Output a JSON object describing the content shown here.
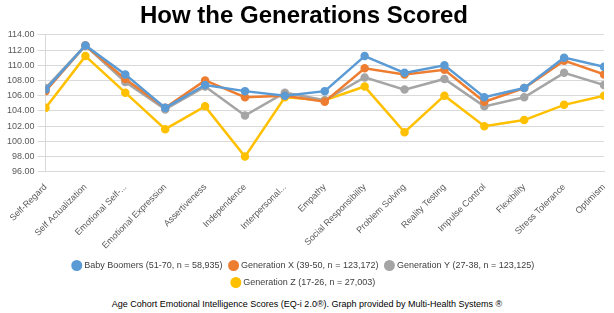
{
  "chart_data": {
    "type": "line",
    "title": "How the Generations Scored",
    "caption": "Age Cohort Emotional Intelligence Scores (EQ-i 2.0®). Graph provided by Multi-Health Systems ®",
    "categories": [
      "Self-Regard",
      "Self Actualization",
      "Emotional Self-...",
      "Emotional Expression",
      "Assertiveness",
      "Independence",
      "Interpersonal...",
      "Empathy",
      "Social Responsibility",
      "Problem Solving",
      "Reality Testing",
      "Impulse Control",
      "Flexibility",
      "Stress Tolerance",
      "Optimism"
    ],
    "series": [
      {
        "name": "Baby Boomers (51-70, n = 58,935)",
        "color": "#5b9bd5",
        "marker": "circle",
        "values": [
          106.8,
          112.6,
          108.8,
          104.4,
          107.4,
          106.6,
          106.0,
          106.6,
          111.2,
          109.0,
          110.0,
          105.8,
          107.0,
          111.0,
          109.8
        ]
      },
      {
        "name": "Generation X (39-50, n = 123,172)",
        "color": "#ed7d31",
        "marker": "circle",
        "values": [
          106.6,
          112.6,
          108.2,
          104.4,
          108.0,
          105.8,
          106.0,
          105.2,
          109.6,
          108.8,
          109.4,
          105.2,
          107.0,
          110.6,
          108.8
        ]
      },
      {
        "name": "Generation Y (27-38, n = 123,125)",
        "color": "#a5a5a5",
        "marker": "circle",
        "values": [
          107.0,
          112.6,
          107.8,
          104.2,
          107.2,
          103.4,
          106.4,
          105.4,
          108.4,
          106.8,
          108.2,
          104.6,
          105.8,
          109.0,
          107.4
        ]
      },
      {
        "name": "Generation Z (17-26, n = 27,003)",
        "color": "#ffc000",
        "marker": "circle",
        "values": [
          104.4,
          111.2,
          106.4,
          101.6,
          104.6,
          98.0,
          105.8,
          105.4,
          107.2,
          101.2,
          106.0,
          102.0,
          102.8,
          104.8,
          106.0
        ]
      }
    ],
    "ylim": [
      96,
      114
    ],
    "yticks": [
      {
        "value": 96,
        "label": "96.00"
      },
      {
        "value": 98,
        "label": "98.00"
      },
      {
        "value": 100,
        "label": "100.00"
      },
      {
        "value": 102,
        "label": "102.00"
      },
      {
        "value": 104,
        "label": "104.00"
      },
      {
        "value": 106,
        "label": "106.00"
      },
      {
        "value": 108,
        "label": "108.00"
      },
      {
        "value": 110,
        "label": "110.00"
      },
      {
        "value": 112,
        "label": "112.00"
      },
      {
        "value": 114,
        "label": "114.00"
      }
    ],
    "grid": true,
    "legend": "bottom"
  }
}
